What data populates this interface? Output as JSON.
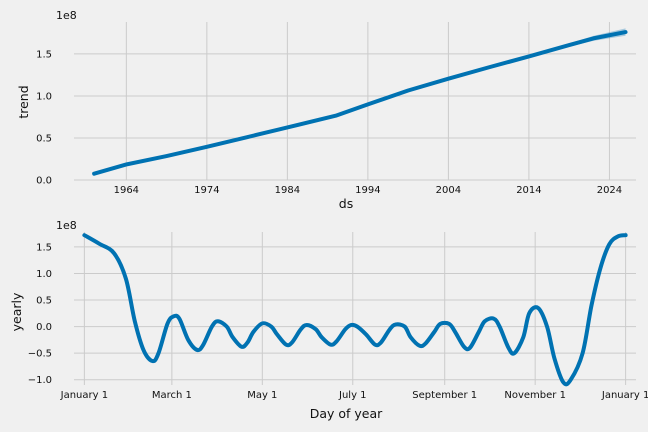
{
  "chart_data": [
    {
      "type": "area",
      "xlabel": "ds",
      "ylabel": "trend",
      "offset_label": "1e8",
      "xlim": [
        1957.5,
        2027.3
      ],
      "ylim": [
        0,
        18.8
      ],
      "xticks": [
        1964,
        1974,
        1984,
        1994,
        2004,
        2014,
        2024
      ],
      "xtick_labels": [
        "1964",
        "1974",
        "1984",
        "1994",
        "2004",
        "2014",
        "2024"
      ],
      "yticks": [
        0,
        5,
        10,
        15
      ],
      "ytick_labels": [
        "0.0",
        "0.5",
        "1.0",
        "1.5"
      ],
      "series": [
        {
          "name": "trend",
          "color": "#0072b2",
          "x": [
            1960,
            1964,
            1969,
            1974,
            1979,
            1984,
            1990,
            1994,
            1999,
            2004,
            2009,
            2014,
            2019,
            2022,
            2026
          ],
          "values": [
            0.75,
            1.85,
            2.85,
            3.95,
            5.1,
            6.25,
            7.65,
            9.0,
            10.65,
            12.05,
            13.4,
            14.7,
            16.05,
            16.85,
            17.6
          ],
          "uncertainty_lower": [
            0.75,
            1.85,
            2.85,
            3.95,
            5.1,
            6.25,
            7.65,
            9.0,
            10.65,
            12.05,
            13.4,
            14.7,
            16.0,
            16.7,
            17.3
          ],
          "uncertainty_upper": [
            0.75,
            1.85,
            2.85,
            3.95,
            5.1,
            6.25,
            7.65,
            9.0,
            10.65,
            12.05,
            13.4,
            14.7,
            16.1,
            17.0,
            17.9
          ]
        }
      ]
    },
    {
      "type": "line",
      "xlabel": "Day of year",
      "ylabel": "yearly",
      "offset_label": "1e8",
      "xlim": [
        -7,
        372
      ],
      "ylim": [
        -11,
        17.8
      ],
      "xticks": [
        0,
        59,
        120,
        181,
        243,
        304,
        365
      ],
      "xtick_labels": [
        "January 1",
        "March 1",
        "May 1",
        "July 1",
        "September 1",
        "November 1",
        "January 1"
      ],
      "yticks": [
        -10,
        -5,
        0,
        5,
        10,
        15
      ],
      "ytick_labels": [
        "−1.0",
        "−0.5",
        "0.0",
        "0.5",
        "1.0",
        "1.5"
      ],
      "series": [
        {
          "name": "yearly",
          "color": "#0072b2",
          "x": [
            0,
            10,
            20,
            28,
            34,
            40,
            46,
            50,
            56,
            60,
            64,
            70,
            76,
            80,
            86,
            90,
            96,
            100,
            106,
            110,
            114,
            120,
            126,
            130,
            136,
            140,
            146,
            150,
            156,
            160,
            166,
            170,
            176,
            180,
            184,
            190,
            196,
            200,
            206,
            210,
            216,
            220,
            226,
            230,
            236,
            240,
            246,
            250,
            256,
            260,
            266,
            270,
            276,
            280,
            286,
            290,
            296,
            300,
            306,
            312,
            317,
            323,
            328,
            336,
            342,
            348,
            354,
            360,
            365
          ],
          "values": [
            17.2,
            15.6,
            13.8,
            9.0,
            1.0,
            -4.5,
            -6.5,
            -5.0,
            0.5,
            1.9,
            1.5,
            -2.5,
            -4.4,
            -3.5,
            0.0,
            1.0,
            0.0,
            -2.0,
            -3.8,
            -3.0,
            -1.0,
            0.6,
            0.0,
            -1.5,
            -3.4,
            -3.0,
            -0.5,
            0.3,
            -0.5,
            -2.0,
            -3.4,
            -2.8,
            -0.5,
            0.3,
            0.0,
            -1.5,
            -3.4,
            -3.0,
            -0.5,
            0.4,
            0.0,
            -2.0,
            -3.6,
            -3.2,
            -1.0,
            0.5,
            0.5,
            -1.0,
            -3.8,
            -4.0,
            -1.0,
            1.0,
            1.5,
            0.0,
            -4.0,
            -5.0,
            -2.0,
            2.5,
            3.5,
            0.0,
            -6.0,
            -10.5,
            -10.0,
            -5.0,
            4.0,
            11.0,
            15.5,
            17.0,
            17.2
          ]
        }
      ]
    }
  ]
}
